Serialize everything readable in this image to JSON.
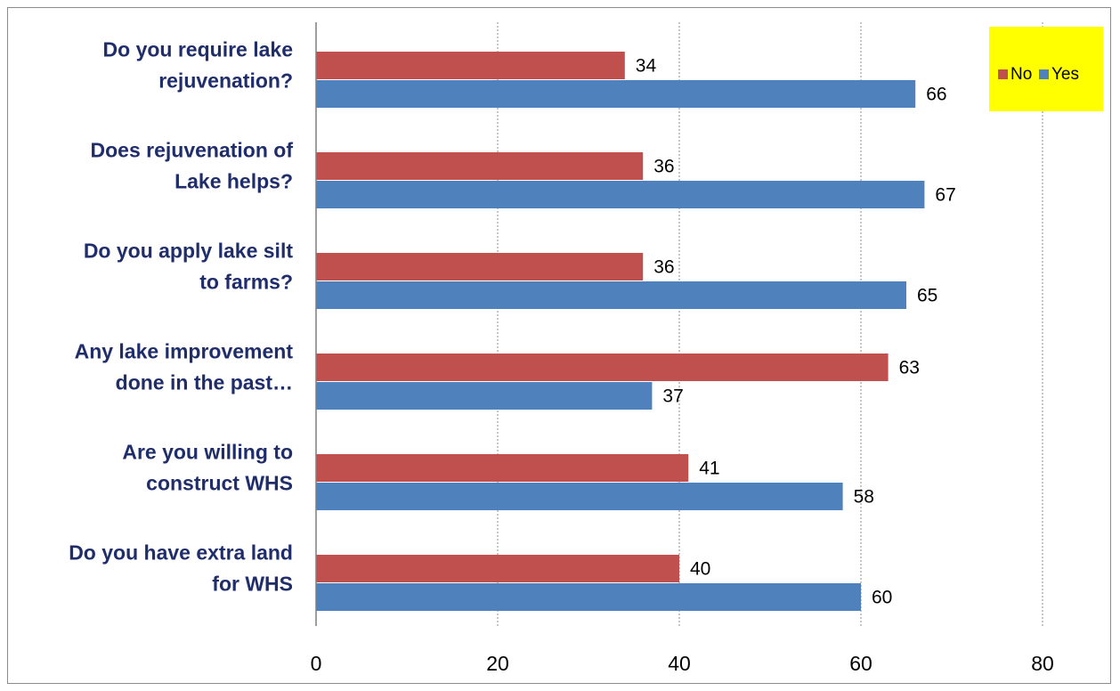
{
  "chart_data": {
    "type": "bar",
    "orientation": "horizontal",
    "categories": [
      [
        "Do you require lake",
        "rejuvenation?"
      ],
      [
        "Does rejuvenation of",
        "Lake helps?"
      ],
      [
        "Do you apply lake silt",
        "to farms?"
      ],
      [
        "Any lake improvement",
        "done in the past…"
      ],
      [
        "Are you willing to",
        "construct WHS"
      ],
      [
        "Do you have extra land",
        "for WHS"
      ]
    ],
    "series": [
      {
        "name": "No",
        "color": "#c0504d",
        "values": [
          34,
          36,
          36,
          63,
          41,
          40
        ]
      },
      {
        "name": "Yes",
        "color": "#4f81bd",
        "values": [
          66,
          67,
          65,
          37,
          58,
          60
        ]
      }
    ],
    "xlim": [
      0,
      80
    ],
    "xticks": [
      0,
      20,
      40,
      60,
      80
    ],
    "grid": "vertical dotted",
    "legend": {
      "placement": "top-right",
      "background": "#ffff00"
    },
    "title": "",
    "xlabel": "",
    "ylabel": ""
  }
}
